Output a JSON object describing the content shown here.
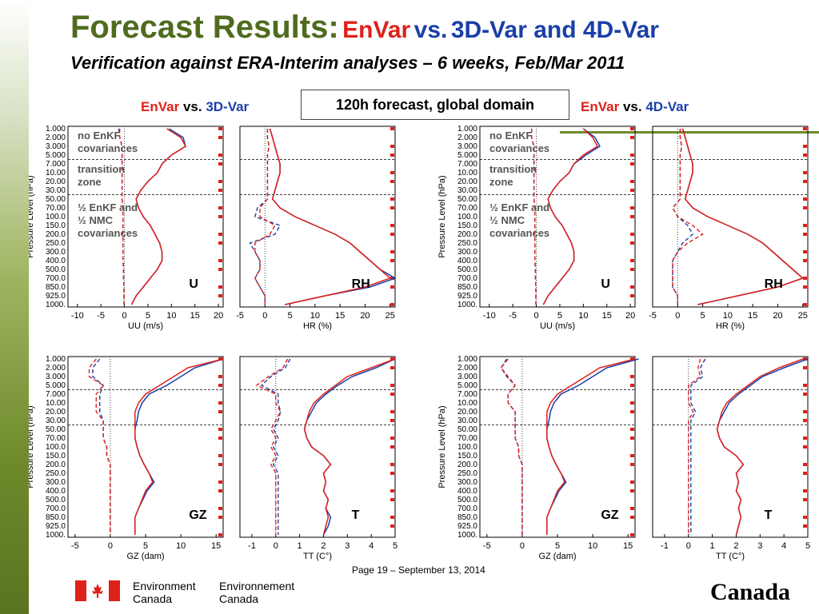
{
  "title": {
    "main": "Forecast Results:",
    "envar": "EnVar",
    "vs": "vs.",
    "rest": "3D-Var and 4D-Var"
  },
  "subtitle": "Verification against ERA-Interim analyses – 6 weeks, Feb/Mar 2011",
  "comparison_left": {
    "envar": "EnVar",
    "vs": "vs.",
    "other": "3D-Var"
  },
  "comparison_right": {
    "envar": "EnVar",
    "vs": "vs.",
    "other": "4D-Var"
  },
  "forecast_box": "120h forecast, global domain",
  "footer": {
    "page": "Page 19 – September 13, 2014",
    "env_en_1": "Environment",
    "env_en_2": "Canada",
    "env_fr_1": "Environnement",
    "env_fr_2": "Canada",
    "wordmark": "Canada"
  },
  "colors": {
    "title_green": "#4f6b1e",
    "envar_red": "#e0201b",
    "var_blue": "#1a3fa8"
  },
  "chart_data": {
    "type": "line",
    "pressure_levels": [
      "1.000",
      "2.000",
      "3.000",
      "5.000",
      "7.000",
      "10.00",
      "20.00",
      "30.00",
      "50.00",
      "70.00",
      "100.0",
      "150.0",
      "200.0",
      "250.0",
      "300.0",
      "400.0",
      "500.0",
      "700.0",
      "850.0",
      "925.0",
      "1000."
    ],
    "ylabel": "Pressure Level (hPa)",
    "zone_labels": [
      "no EnKF covariances",
      "transition zone",
      "½ EnKF and ½ NMC covariances"
    ],
    "series_colors": {
      "envar": "#e0201b",
      "var": "#1a3fa8"
    },
    "panels": [
      {
        "group": "3D-Var",
        "var": "U",
        "xlabel": "UU (m/s)",
        "xticks": [
          "-10",
          "-5",
          "0",
          "5",
          "10",
          "15",
          "20"
        ],
        "xlim": [
          -12,
          21
        ],
        "zones": true,
        "std_envar": [
          9,
          12,
          13,
          10,
          8,
          7,
          5,
          3.5,
          2.5,
          3,
          4,
          5.5,
          6.5,
          7.5,
          8,
          8,
          7,
          5.5,
          4,
          2.5,
          1.5
        ],
        "std_var": [
          9.5,
          12.5,
          13,
          10,
          8,
          7,
          5,
          3.5,
          2.5,
          3,
          4,
          5.5,
          6.5,
          7.5,
          8,
          8,
          7,
          5.5,
          4,
          2.5,
          1.5
        ],
        "bias_envar": [
          -1,
          -1,
          -0.5,
          -0.5,
          -0.5,
          -0.5,
          -0.5,
          -0.5,
          -0.5,
          -0.3,
          -0.3,
          -0.3,
          -0.3,
          -0.3,
          -0.3,
          -0.3,
          -0.2,
          -0.2,
          -0.1,
          -0.1,
          -0.1
        ],
        "bias_var": [
          -1.2,
          -1,
          -0.5,
          -0.5,
          -0.5,
          -0.5,
          -0.5,
          -0.5,
          -0.5,
          -0.3,
          -0.3,
          -0.3,
          -0.3,
          -0.3,
          -0.3,
          -0.3,
          -0.2,
          -0.2,
          -0.1,
          -0.1,
          -0.1
        ]
      },
      {
        "group": "3D-Var",
        "var": "RH",
        "xlabel": "HR (%)",
        "xticks": [
          "-5",
          "0",
          "5",
          "10",
          "15",
          "20",
          "25"
        ],
        "xlim": [
          -5,
          26
        ],
        "zones": false,
        "std_envar": [
          1,
          1.5,
          2,
          2.5,
          3,
          3,
          2.5,
          2,
          1.5,
          3,
          6,
          10,
          14,
          17,
          19,
          21,
          23,
          25,
          20,
          12,
          4
        ],
        "std_var": [
          1,
          1.5,
          2,
          2.5,
          3,
          3,
          2.5,
          2,
          1.5,
          3,
          6,
          10,
          14,
          17,
          19,
          21,
          23,
          26,
          21,
          12,
          4
        ],
        "bias_envar": [
          0.5,
          0.5,
          0.8,
          0.5,
          0.5,
          0.5,
          0.5,
          0.5,
          0.5,
          -1,
          -1,
          2,
          1,
          -2,
          -2,
          -1,
          -1,
          -2,
          -1,
          0,
          0
        ],
        "bias_var": [
          0.5,
          0.5,
          0.8,
          0.5,
          0.5,
          0.5,
          0.5,
          0.5,
          0.5,
          -1.5,
          -2,
          3,
          2,
          -3,
          -2,
          -1,
          -1,
          -2,
          -1,
          0,
          0
        ]
      },
      {
        "group": "4D-Var",
        "var": "U",
        "xlabel": "UU (m/s)",
        "xticks": [
          "-10",
          "-5",
          "0",
          "5",
          "10",
          "15",
          "20"
        ],
        "xlim": [
          -12,
          21
        ],
        "zones": true,
        "std_envar": [
          10,
          12,
          13,
          10,
          8,
          7,
          5,
          3.5,
          2.5,
          3,
          4,
          5.5,
          6.5,
          7.5,
          8,
          8,
          7,
          5.5,
          4,
          2.5,
          1.5
        ],
        "std_var": [
          10,
          12.5,
          13.5,
          10.5,
          8,
          7,
          5,
          3.5,
          2.5,
          3,
          4,
          5.5,
          6.5,
          7.5,
          8,
          8,
          7,
          5.5,
          4,
          2.5,
          1.5
        ],
        "bias_envar": [
          -1,
          -1,
          -0.5,
          -0.5,
          -0.5,
          -0.5,
          -0.5,
          -0.5,
          -0.5,
          -0.3,
          -0.3,
          -0.3,
          -0.3,
          -0.3,
          -0.3,
          -0.3,
          -0.2,
          -0.2,
          -0.1,
          -0.1,
          -0.1
        ],
        "bias_var": [
          -1,
          -1,
          -0.5,
          -0.5,
          -0.5,
          -0.5,
          -0.5,
          -0.5,
          -0.5,
          -0.3,
          -0.3,
          -0.3,
          -0.3,
          -0.3,
          -0.3,
          -0.3,
          -0.2,
          -0.2,
          -0.1,
          -0.1,
          -0.1
        ]
      },
      {
        "group": "4D-Var",
        "var": "RH",
        "xlabel": "HR (%)",
        "xticks": [
          "-5",
          "0",
          "5",
          "10",
          "15",
          "20",
          "25"
        ],
        "xlim": [
          -5,
          26
        ],
        "zones": false,
        "std_envar": [
          1,
          1.5,
          2,
          2.5,
          3,
          3,
          2.5,
          2,
          1.5,
          3,
          6,
          10,
          14,
          17,
          19,
          21,
          23,
          25,
          20,
          12,
          4
        ],
        "std_var": [
          1,
          1.5,
          2,
          2.5,
          3,
          3,
          2.5,
          2,
          1.5,
          3,
          6,
          10,
          14,
          17,
          19,
          21,
          23,
          25,
          20,
          12,
          4
        ],
        "bias_envar": [
          0.5,
          0.5,
          0.8,
          0.5,
          0.5,
          0.5,
          0.5,
          0.5,
          0.5,
          -1,
          0,
          3,
          5,
          2,
          0,
          -1,
          -1,
          -1,
          -1,
          0,
          0
        ],
        "bias_var": [
          0.5,
          0.5,
          0.8,
          0.5,
          0.5,
          0.5,
          0.5,
          0.5,
          0.5,
          -1,
          0,
          2,
          3,
          1,
          0,
          -1,
          -1,
          -1,
          -1,
          0,
          0
        ]
      },
      {
        "group": "3D-Var",
        "var": "GZ",
        "xlabel": "GZ (dam)",
        "xticks": [
          "-5",
          "0",
          "5",
          "10",
          "15"
        ],
        "xlim": [
          -6,
          16
        ],
        "zones": false,
        "std_envar": [
          16,
          11,
          9,
          7,
          5,
          4,
          3.5,
          3.5,
          3.5,
          3.5,
          3.8,
          4.2,
          4.8,
          5.5,
          6,
          5,
          4.5,
          4,
          3.5,
          3.5,
          3.5
        ],
        "std_var": [
          16,
          12,
          10,
          8,
          5.5,
          4.5,
          4,
          3.8,
          3.5,
          3.5,
          3.8,
          4.2,
          4.8,
          5.5,
          6.2,
          5.2,
          4.6,
          4,
          3.5,
          3.5,
          3.5
        ],
        "bias_envar": [
          -2,
          -3,
          -3,
          -1,
          -2,
          -2,
          -2,
          -1,
          -1,
          -1,
          -0.5,
          -0.5,
          0,
          0,
          0,
          0,
          0,
          0,
          0,
          0,
          0
        ],
        "bias_var": [
          -1.5,
          -2.5,
          -2.5,
          -1,
          -1.5,
          -1.5,
          -1.5,
          -1,
          -1,
          -1,
          -0.5,
          -0.5,
          0,
          0,
          0,
          0,
          0,
          0,
          0,
          0,
          0
        ]
      },
      {
        "group": "3D-Var",
        "var": "T",
        "xlabel": "TT (C°)",
        "xticks": [
          "-1",
          "0",
          "1",
          "2",
          "3",
          "4",
          "5"
        ],
        "xlim": [
          -1.5,
          5
        ],
        "zones": false,
        "std_envar": [
          5,
          4,
          3,
          2.5,
          2,
          1.6,
          1.4,
          1.3,
          1.2,
          1.3,
          1.5,
          2,
          2.3,
          2,
          2.1,
          2,
          2.2,
          2.1,
          2.2,
          2.1,
          2
        ],
        "std_var": [
          5,
          4.2,
          3.2,
          2.6,
          2.1,
          1.7,
          1.5,
          1.3,
          1.2,
          1.3,
          1.5,
          2,
          2.3,
          2,
          2.1,
          2,
          2.2,
          2.1,
          2.3,
          2.2,
          2
        ],
        "bias_envar": [
          0.5,
          0.3,
          -0.3,
          -0.8,
          0,
          0,
          0.2,
          0,
          -0.2,
          0,
          -0.2,
          0,
          -0.2,
          0,
          0,
          0,
          0,
          0,
          0,
          0,
          0
        ],
        "bias_var": [
          0.6,
          0.4,
          -0.2,
          -0.6,
          0.1,
          0.1,
          0.2,
          0.1,
          -0.1,
          0.1,
          -0.1,
          0.1,
          -0.1,
          0.1,
          0.1,
          0.1,
          0.1,
          0.1,
          0.1,
          0.1,
          0.1
        ]
      },
      {
        "group": "4D-Var",
        "var": "GZ",
        "xlabel": "GZ (dam)",
        "xticks": [
          "-5",
          "0",
          "5",
          "10",
          "15"
        ],
        "xlim": [
          -6,
          16
        ],
        "zones": false,
        "std_envar": [
          16,
          11,
          9,
          7,
          5,
          4,
          3.5,
          3.5,
          3.5,
          3.5,
          3.8,
          4.2,
          4.8,
          5.5,
          6,
          5,
          4.5,
          4,
          3.5,
          3.5,
          3.5
        ],
        "std_var": [
          16.5,
          12,
          10,
          8,
          5.5,
          4.5,
          4,
          3.8,
          3.5,
          3.5,
          3.8,
          4.2,
          4.8,
          5.5,
          6.2,
          5.2,
          4.6,
          4,
          3.5,
          3.5,
          3.5
        ],
        "bias_envar": [
          -2,
          -3,
          -2,
          -1,
          -2,
          -2,
          -1,
          -1,
          -1,
          -1,
          -0.5,
          -0.5,
          0,
          0,
          0,
          0,
          0,
          0,
          0,
          0,
          0
        ],
        "bias_var": [
          -2.2,
          -3,
          -2.2,
          -1,
          -2,
          -2,
          -1,
          -1,
          -1,
          -1,
          -0.5,
          -0.5,
          0,
          0,
          0,
          0,
          0,
          0,
          0,
          0,
          0
        ]
      },
      {
        "group": "4D-Var",
        "var": "T",
        "xlabel": "TT (C°)",
        "xticks": [
          "-1",
          "0",
          "1",
          "2",
          "3",
          "4",
          "5"
        ],
        "xlim": [
          -1.5,
          5
        ],
        "zones": false,
        "std_envar": [
          4.8,
          3.8,
          3,
          2.5,
          2,
          1.6,
          1.4,
          1.3,
          1.2,
          1.3,
          1.5,
          2,
          2.3,
          2,
          2.1,
          2,
          2.2,
          2.1,
          2.2,
          2.1,
          2
        ],
        "std_var": [
          5,
          4,
          3.1,
          2.6,
          2.1,
          1.7,
          1.5,
          1.3,
          1.2,
          1.3,
          1.5,
          2,
          2.3,
          2,
          2.1,
          2,
          2.2,
          2.1,
          2.2,
          2.1,
          2
        ],
        "bias_envar": [
          0.5,
          0.4,
          0.5,
          0,
          0,
          0,
          0.2,
          0,
          0,
          0,
          0,
          0,
          0,
          0,
          0,
          0,
          0,
          0,
          0,
          0,
          0
        ],
        "bias_var": [
          0.7,
          0.5,
          0.6,
          0.1,
          0.1,
          0.1,
          0.3,
          0.1,
          0.1,
          0.1,
          0.1,
          0.1,
          0.1,
          0.1,
          0.1,
          0.1,
          0.1,
          0.1,
          0.1,
          0.1,
          0.1
        ]
      }
    ]
  }
}
